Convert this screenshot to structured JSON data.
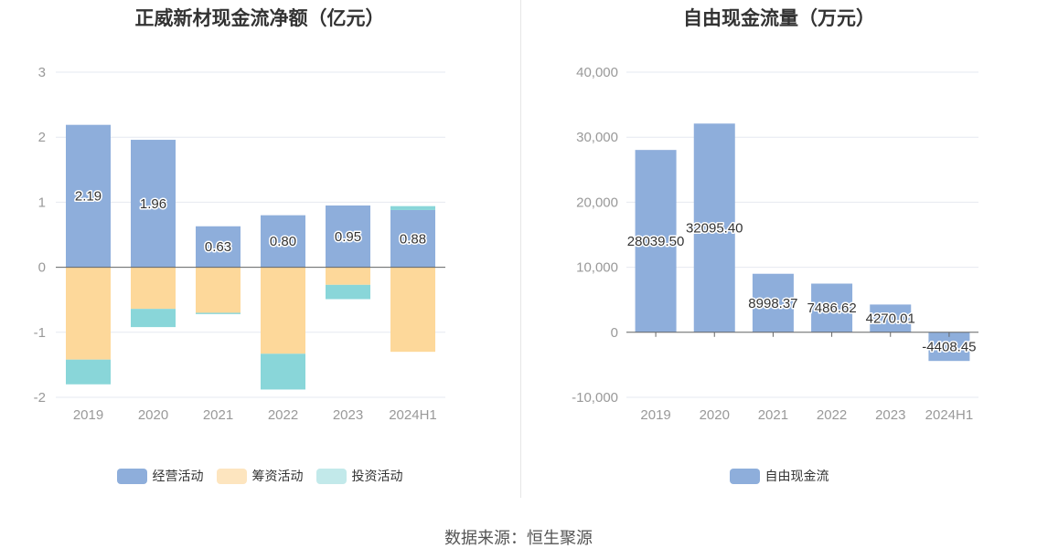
{
  "source_text": "数据来源：恒生聚源",
  "chart_data": [
    {
      "type": "bar",
      "stacked": true,
      "title": "正威新材现金流净额（亿元）",
      "categories": [
        "2019",
        "2020",
        "2021",
        "2022",
        "2023",
        "2024H1"
      ],
      "series": [
        {
          "name": "经营活动",
          "color": "#8eaedb",
          "values": [
            2.19,
            1.96,
            0.63,
            0.8,
            0.95,
            0.88
          ]
        },
        {
          "name": "筹资活动",
          "color": "#fdd89a",
          "values": [
            -1.42,
            -0.64,
            -0.7,
            -1.33,
            -0.27,
            -1.3
          ]
        },
        {
          "name": "投资活动",
          "color": "#89d6d9",
          "values": [
            -0.38,
            -0.28,
            -0.02,
            -0.55,
            -0.22,
            0.06
          ]
        }
      ],
      "data_labels": [
        "2.19",
        "1.96",
        "0.63",
        "0.80",
        "0.95",
        "0.88"
      ],
      "ylim": [
        -2,
        3
      ],
      "yticks": [
        "-2",
        "-1",
        "0",
        "1",
        "2",
        "3"
      ],
      "legend": [
        {
          "name": "经营活动",
          "color": "#8eaedb"
        },
        {
          "name": "筹资活动",
          "color": "#fde5bf"
        },
        {
          "name": "投资活动",
          "color": "#c2e9ea"
        }
      ]
    },
    {
      "type": "bar",
      "title": "自由现金流量（万元）",
      "categories": [
        "2019",
        "2020",
        "2021",
        "2022",
        "2023",
        "2024H1"
      ],
      "series": [
        {
          "name": "自由现金流",
          "color": "#8eaedb",
          "values": [
            28039.5,
            32095.4,
            8998.37,
            7486.62,
            4270.01,
            -4408.45
          ]
        }
      ],
      "data_labels": [
        "28039.50",
        "32095.40",
        "8998.37",
        "7486.62",
        "4270.01",
        "-4408.45"
      ],
      "ylim": [
        -10000,
        40000
      ],
      "yticks": [
        "-10,000",
        "0",
        "10,000",
        "20,000",
        "30,000",
        "40,000"
      ],
      "legend": [
        {
          "name": "自由现金流",
          "color": "#8eaedb"
        }
      ]
    }
  ]
}
